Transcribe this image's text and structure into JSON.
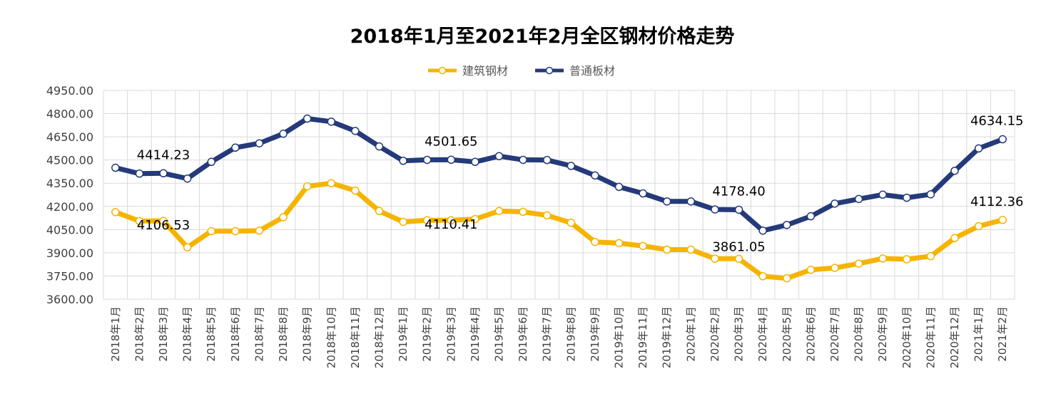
{
  "chart_data": {
    "type": "line",
    "title": "2018年1月至2021年2月全区钢材价格走势",
    "xlabel": "",
    "ylabel": "",
    "ylim": [
      3600,
      4950
    ],
    "yticks": [
      "4950.00",
      "4800.00",
      "4650.00",
      "4500.00",
      "4350.00",
      "4200.00",
      "4050.00",
      "3900.00",
      "3750.00",
      "3600.00"
    ],
    "grid": true,
    "legend_position": "top",
    "categories": [
      "2018年1月",
      "2018年2月",
      "2018年3月",
      "2018年4月",
      "2018年5月",
      "2018年6月",
      "2018年7月",
      "2018年8月",
      "2018年9月",
      "2018年10月",
      "2018年11月",
      "2018年12月",
      "2019年1月",
      "2019年2月",
      "2019年3月",
      "2019年4月",
      "2019年5月",
      "2019年6月",
      "2019年7月",
      "2019年8月",
      "2019年9月",
      "2019年10月",
      "2019年11月",
      "2019年12月",
      "2020年1月",
      "2020年2月",
      "2020年3月",
      "2020年4月",
      "2020年5月",
      "2020年6月",
      "2020年7月",
      "2020年8月",
      "2020年9月",
      "2020年10月",
      "2020年11月",
      "2020年12月",
      "2021年1月",
      "2021年2月"
    ],
    "series": [
      {
        "name": "建筑钢材",
        "color": "#f5b400",
        "values": [
          4163,
          4105,
          4106.53,
          3935,
          4040,
          4040,
          4043,
          4130,
          4330,
          4350,
          4302,
          4170,
          4100,
          4110,
          4110.41,
          4118,
          4170,
          4165,
          4142,
          4094,
          3970,
          3962,
          3944,
          3920,
          3920,
          3862,
          3861.05,
          3748,
          3735,
          3790,
          3802,
          3830,
          3863,
          3858,
          3878,
          3995,
          4072,
          4112.36
        ],
        "labels": [
          {
            "index": 2,
            "text": "4106.53"
          },
          {
            "index": 14,
            "text": "4110.41"
          },
          {
            "index": 26,
            "text": "3861.05"
          },
          {
            "index": 37,
            "text": "4112.36"
          }
        ]
      },
      {
        "name": "普通板材",
        "color": "#243a7a",
        "values": [
          4450,
          4412,
          4414.23,
          4380,
          4488,
          4580,
          4608,
          4670,
          4768,
          4748,
          4688,
          4588,
          4495,
          4501,
          4501.65,
          4488,
          4525,
          4501,
          4500,
          4462,
          4400,
          4326,
          4284,
          4232,
          4232,
          4180,
          4178.4,
          4043,
          4080,
          4136,
          4218,
          4248,
          4276,
          4256,
          4278,
          4430,
          4575,
          4634.15
        ],
        "labels": [
          {
            "index": 2,
            "text": "4414.23"
          },
          {
            "index": 14,
            "text": "4501.65"
          },
          {
            "index": 26,
            "text": "4178.40"
          },
          {
            "index": 37,
            "text": "4634.15"
          }
        ]
      }
    ]
  }
}
